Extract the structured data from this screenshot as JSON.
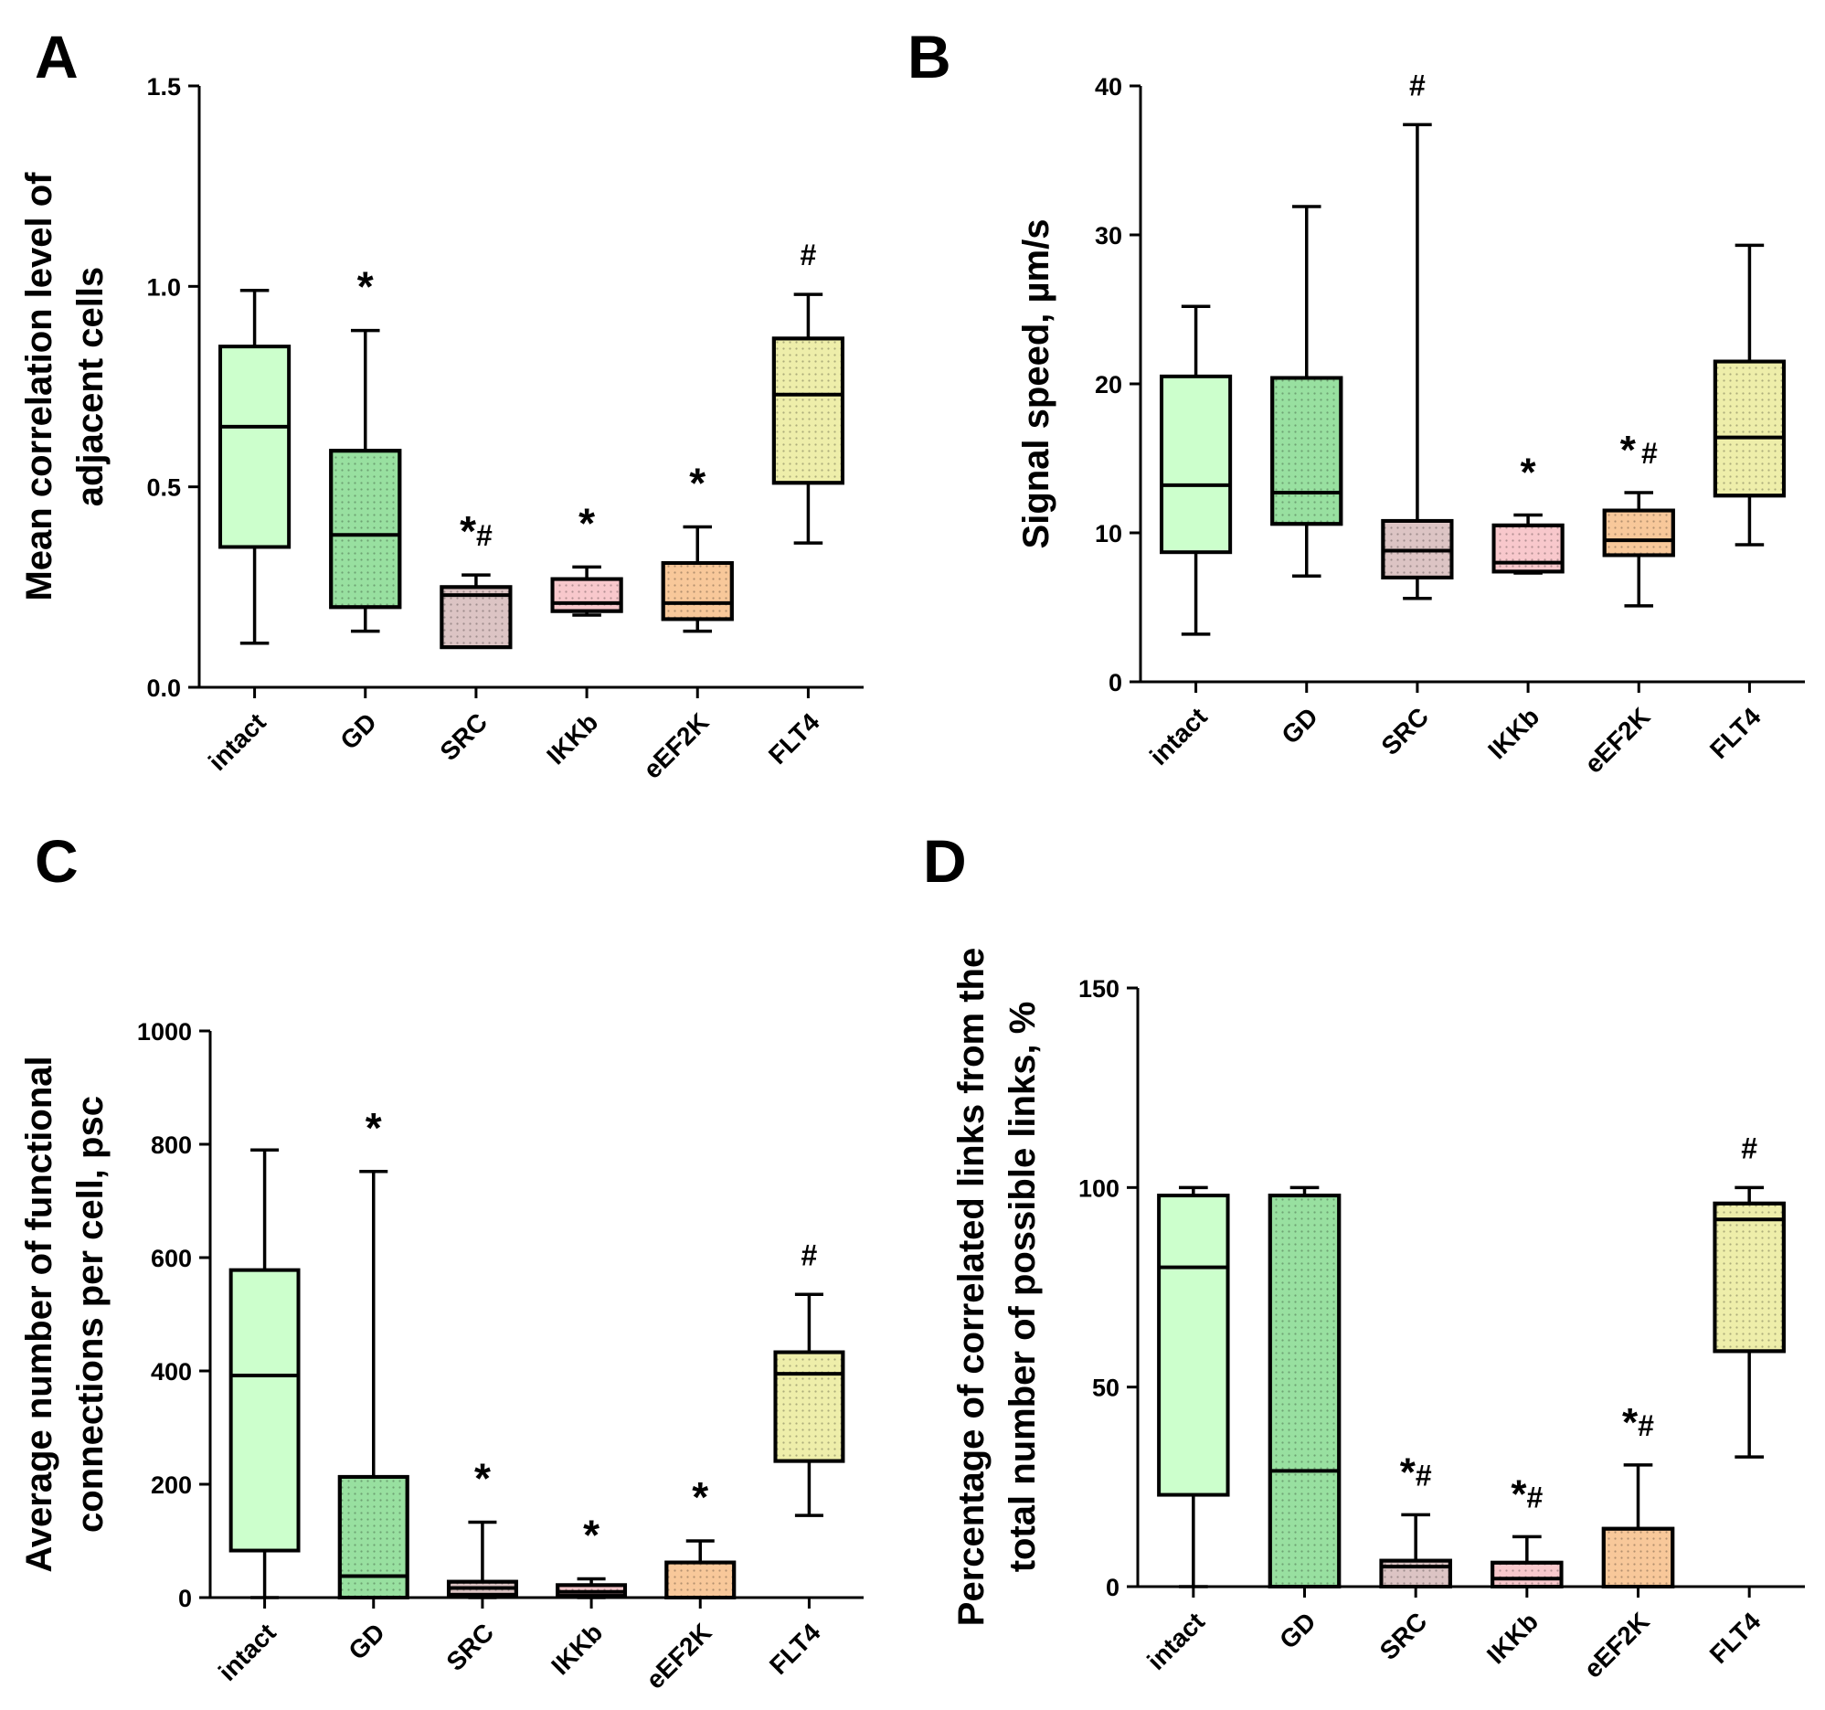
{
  "colors": {
    "intact": "#ccffcc",
    "GD": "#98e0a0",
    "SRC": "#dcc4c4",
    "IKKb": "#f8c8cc",
    "eEF2K": "#f8c89a",
    "FLT4": "#eeeeaa"
  },
  "chart_data": [
    {
      "type": "box",
      "panel": "A",
      "ylabel_lines": [
        "Mean correlation level of",
        "adjacent cells"
      ],
      "ylim": [
        0,
        1.5
      ],
      "yticks": [
        "0.0",
        "0.5",
        "1.0",
        "1.5"
      ],
      "categories": [
        "intact",
        "GD",
        "SRC",
        "IKKb",
        "eEF2K",
        "FLT4"
      ],
      "boxes": [
        {
          "whisker_low": 0.11,
          "q1": 0.35,
          "median": 0.65,
          "q3": 0.85,
          "whisker_high": 0.99
        },
        {
          "whisker_low": 0.14,
          "q1": 0.2,
          "median": 0.38,
          "q3": 0.59,
          "whisker_high": 0.89
        },
        {
          "whisker_low": 0.1,
          "q1": 0.1,
          "median": 0.23,
          "q3": 0.25,
          "whisker_high": 0.28
        },
        {
          "whisker_low": 0.18,
          "q1": 0.19,
          "median": 0.21,
          "q3": 0.27,
          "whisker_high": 0.3
        },
        {
          "whisker_low": 0.14,
          "q1": 0.17,
          "median": 0.21,
          "q3": 0.31,
          "whisker_high": 0.4
        },
        {
          "whisker_low": 0.36,
          "q1": 0.51,
          "median": 0.73,
          "q3": 0.87,
          "whisker_high": 0.98
        }
      ],
      "annotations": [
        "",
        "*",
        "*#",
        "*",
        "*",
        "#"
      ]
    },
    {
      "type": "box",
      "panel": "B",
      "ylabel_lines": [
        "Signal speed, µm/s"
      ],
      "ylim": [
        0,
        40
      ],
      "yticks": [
        "0",
        "10",
        "20",
        "30",
        "40"
      ],
      "categories": [
        "intact",
        "GD",
        "SRC",
        "IKKb",
        "eEF2K",
        "FLT4"
      ],
      "boxes": [
        {
          "whisker_low": 3.2,
          "q1": 8.7,
          "median": 13.2,
          "q3": 20.5,
          "whisker_high": 25.2
        },
        {
          "whisker_low": 7.1,
          "q1": 10.6,
          "median": 12.7,
          "q3": 20.4,
          "whisker_high": 31.9
        },
        {
          "whisker_low": 5.6,
          "q1": 7.0,
          "median": 8.8,
          "q3": 10.8,
          "whisker_high": 37.4
        },
        {
          "whisker_low": 7.3,
          "q1": 7.4,
          "median": 8.0,
          "q3": 10.5,
          "whisker_high": 11.2
        },
        {
          "whisker_low": 5.1,
          "q1": 8.5,
          "median": 9.5,
          "q3": 11.5,
          "whisker_high": 12.7
        },
        {
          "whisker_low": 9.2,
          "q1": 12.5,
          "median": 16.4,
          "q3": 21.5,
          "whisker_high": 29.3
        }
      ],
      "annotations": [
        "",
        "",
        "#",
        "*",
        "* #",
        ""
      ]
    },
    {
      "type": "box",
      "panel": "C",
      "ylabel_lines": [
        "Average number of functional",
        "connections per cell, psc"
      ],
      "ylim": [
        0,
        1000
      ],
      "yticks": [
        "0",
        "200",
        "400",
        "600",
        "800",
        "1000"
      ],
      "categories": [
        "intact",
        "GD",
        "SRC",
        "IKKb",
        "eEF2K",
        "FLT4"
      ],
      "boxes": [
        {
          "whisker_low": 0,
          "q1": 83,
          "median": 392,
          "q3": 578,
          "whisker_high": 790
        },
        {
          "whisker_low": 0,
          "q1": 0,
          "median": 38,
          "q3": 213,
          "whisker_high": 752
        },
        {
          "whisker_low": 0,
          "q1": 5,
          "median": 17,
          "q3": 28,
          "whisker_high": 133
        },
        {
          "whisker_low": 0,
          "q1": 3,
          "median": 10,
          "q3": 22,
          "whisker_high": 33
        },
        {
          "whisker_low": 0,
          "q1": 0,
          "median": 0,
          "q3": 62,
          "whisker_high": 100
        },
        {
          "whisker_low": 145,
          "q1": 241,
          "median": 395,
          "q3": 433,
          "whisker_high": 535
        }
      ],
      "annotations": [
        "",
        "*",
        "*",
        "*",
        "*",
        "#"
      ]
    },
    {
      "type": "box",
      "panel": "D",
      "ylabel_lines": [
        "Percentage of correlated links from the",
        "total number of possible links, %"
      ],
      "ylim": [
        0,
        150
      ],
      "yticks": [
        "0",
        "50",
        "100",
        "150"
      ],
      "categories": [
        "intact",
        "GD",
        "SRC",
        "IKKb",
        "eEF2K",
        "FLT4"
      ],
      "boxes": [
        {
          "whisker_low": 0,
          "q1": 23,
          "median": 80,
          "q3": 98,
          "whisker_high": 100
        },
        {
          "whisker_low": 0,
          "q1": 0,
          "median": 29,
          "q3": 98,
          "whisker_high": 100
        },
        {
          "whisker_low": 0,
          "q1": 0,
          "median": 5,
          "q3": 6.5,
          "whisker_high": 18
        },
        {
          "whisker_low": 0,
          "q1": 0,
          "median": 2,
          "q3": 6,
          "whisker_high": 12.5
        },
        {
          "whisker_low": 0,
          "q1": 0,
          "median": 0,
          "q3": 14.5,
          "whisker_high": 30.5
        },
        {
          "whisker_low": 32.5,
          "q1": 59,
          "median": 92,
          "q3": 96,
          "whisker_high": 100
        }
      ],
      "annotations": [
        "",
        "",
        "*#",
        "*#",
        "*#",
        "#"
      ]
    }
  ]
}
